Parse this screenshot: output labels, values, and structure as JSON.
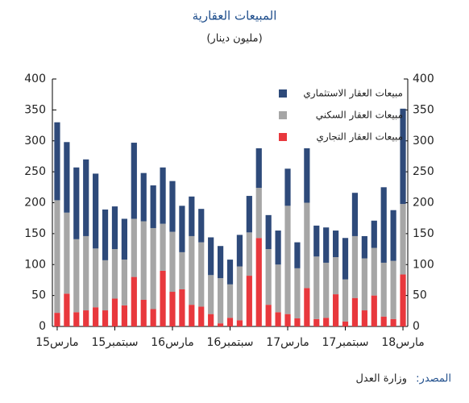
{
  "chart_data": {
    "type": "stacked_bar",
    "title": "المبيعات العقارية",
    "subtitle": "(مليون دينار)",
    "categories": [
      "مارس15",
      null,
      null,
      null,
      null,
      null,
      "سبتمبر15",
      null,
      null,
      null,
      null,
      null,
      "مارس16",
      null,
      null,
      null,
      null,
      null,
      "سبتمبر16",
      null,
      null,
      null,
      null,
      null,
      "مارس17",
      null,
      null,
      null,
      null,
      null,
      "سبتمبر17",
      null,
      null,
      null,
      null,
      null,
      "مارس18"
    ],
    "series": [
      {
        "name": "مبيعات العقار التجاري",
        "color": "#e8383d",
        "values": [
          22,
          53,
          23,
          26,
          31,
          26,
          45,
          34,
          80,
          43,
          28,
          90,
          56,
          60,
          35,
          32,
          20,
          5,
          14,
          10,
          82,
          143,
          35,
          23,
          20,
          13,
          62,
          12,
          14,
          52,
          8,
          46,
          26,
          50,
          16,
          12,
          84
        ]
      },
      {
        "name": "مبيعات العقار السكني",
        "color": "#a6a6a6",
        "values": [
          182,
          131,
          118,
          120,
          95,
          81,
          80,
          74,
          94,
          127,
          131,
          76,
          97,
          60,
          111,
          104,
          63,
          73,
          54,
          87,
          70,
          81,
          90,
          77,
          175,
          81,
          138,
          101,
          89,
          60,
          68,
          100,
          84,
          77,
          87,
          94,
          114
        ]
      },
      {
        "name": "مبيعات العقار الاستثماري",
        "color": "#2e4a7a",
        "values": [
          126,
          114,
          116,
          124,
          121,
          82,
          69,
          66,
          123,
          78,
          69,
          91,
          82,
          75,
          64,
          54,
          61,
          52,
          40,
          51,
          59,
          64,
          55,
          55,
          60,
          42,
          88,
          50,
          57,
          43,
          67,
          70,
          36,
          44,
          122,
          82,
          154
        ]
      }
    ],
    "ylim": [
      0,
      400
    ],
    "yticks": [
      0,
      50,
      100,
      150,
      200,
      250,
      300,
      350,
      400
    ],
    "y2lim": [
      0,
      400
    ],
    "y2ticks": [
      0,
      50,
      100,
      150,
      200,
      250,
      300,
      350,
      400
    ],
    "legend": "top-right"
  },
  "source": {
    "label": "المصدر:",
    "text": "وزارة العدل"
  }
}
